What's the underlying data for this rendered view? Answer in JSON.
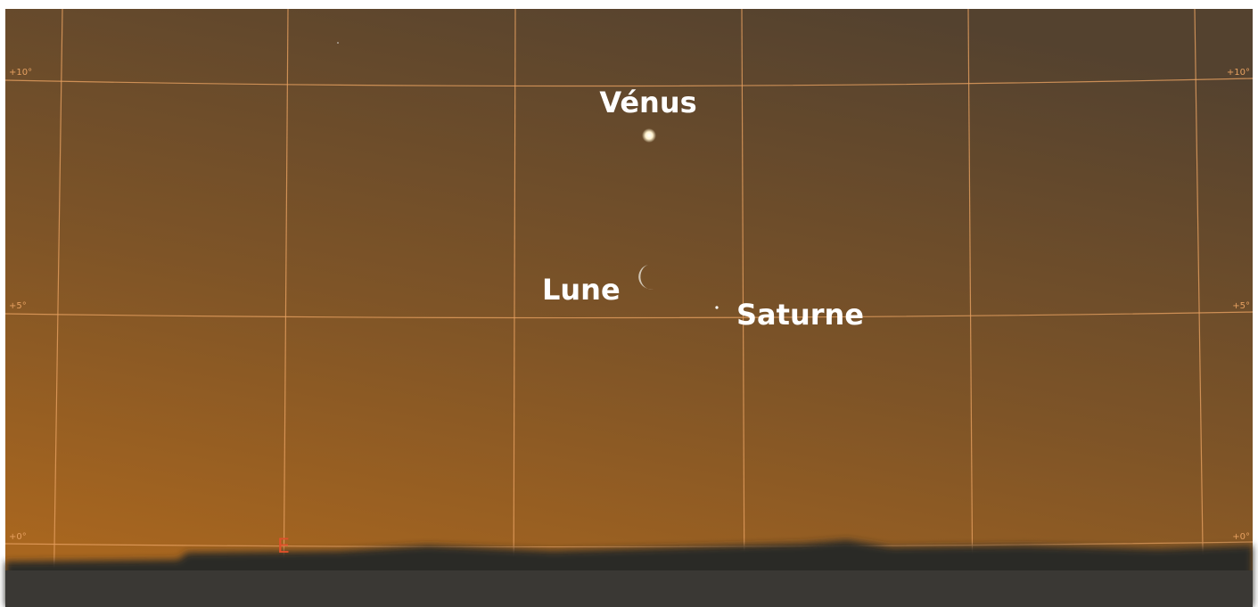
{
  "sky": {
    "objects": [
      {
        "label": "Vénus"
      },
      {
        "label": "Lune"
      },
      {
        "label": "Saturne"
      }
    ],
    "altitude_labels_left": [
      "+10°",
      "+5°",
      "+0°"
    ],
    "altitude_labels_right": [
      "+10°",
      "+5°",
      "+0°"
    ],
    "cardinal": "E"
  }
}
